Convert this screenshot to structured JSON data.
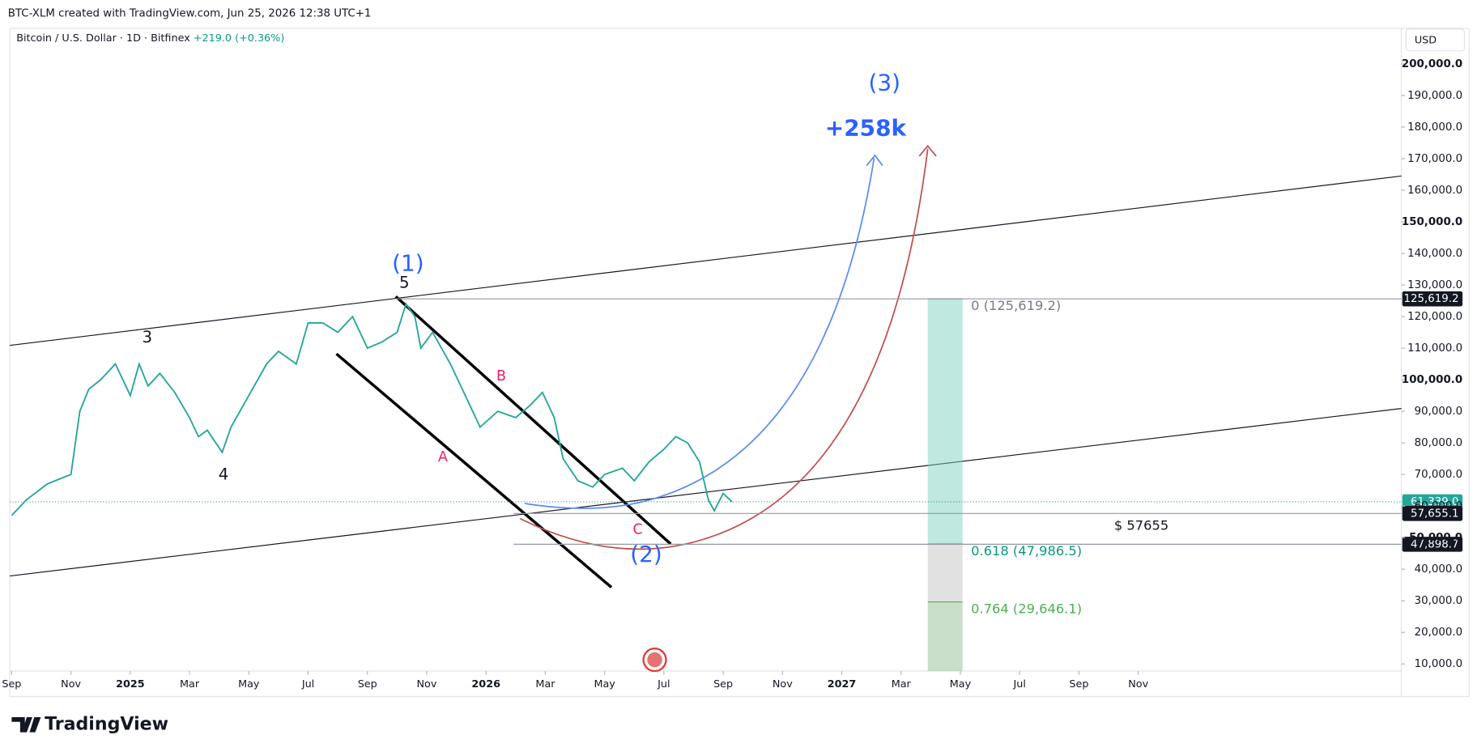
{
  "header": {
    "credit": "BTC-XLM created with TradingView.com, Jun 25, 2026 12:38 UTC+1",
    "symbol": "Bitcoin / U.S. Dollar · 1D · Bitfinex",
    "change": "+219.0 (+0.36%)",
    "currency": "USD",
    "brand": "TradingView"
  },
  "chart_data": {
    "type": "line",
    "color": "#26a69a",
    "x": [
      0,
      0.5,
      1.2,
      2,
      2.3,
      2.6,
      3,
      3.5,
      4,
      4.3,
      4.6,
      5,
      5.5,
      6,
      6.3,
      6.6,
      7.1,
      7.4,
      8,
      8.6,
      9,
      9.6,
      10,
      10.5,
      11,
      11.5,
      12,
      12.5,
      13,
      13.3,
      13.6,
      13.8,
      14.2,
      14.8,
      15.3,
      15.8,
      16.4,
      17,
      17.5,
      17.9,
      18.3,
      18.6,
      19.1,
      19.6,
      20,
      20.6,
      21,
      21.5,
      22,
      22.4,
      22.8,
      23.2,
      23.5,
      23.7,
      24,
      24.3
    ],
    "values": [
      57000,
      62000,
      67000,
      70000,
      90000,
      97000,
      100000,
      105000,
      95000,
      105000,
      98000,
      102000,
      96000,
      88000,
      82000,
      84000,
      77000,
      85000,
      95000,
      105000,
      109000,
      105000,
      118000,
      118000,
      115000,
      120000,
      110000,
      112000,
      115000,
      124000,
      120000,
      110000,
      115000,
      105000,
      95000,
      85000,
      90000,
      88000,
      92000,
      96000,
      88000,
      75000,
      68000,
      66000,
      70000,
      72000,
      68000,
      74000,
      78000,
      82000,
      80000,
      74000,
      62000,
      58500,
      64000,
      61339
    ],
    "xlim": [
      0,
      47
    ],
    "ylim": [
      7750,
      211300
    ],
    "xticks": [
      {
        "value": 0,
        "label": "Sep"
      },
      {
        "value": 2,
        "label": "Nov"
      },
      {
        "value": 4,
        "label": "2025"
      },
      {
        "value": 6,
        "label": "Mar"
      },
      {
        "value": 8,
        "label": "May"
      },
      {
        "value": 10,
        "label": "Jul"
      },
      {
        "value": 12,
        "label": "Sep"
      },
      {
        "value": 14,
        "label": "Nov"
      },
      {
        "value": 16,
        "label": "2026"
      },
      {
        "value": 18,
        "label": "Mar"
      },
      {
        "value": 20,
        "label": "May"
      },
      {
        "value": 22,
        "label": "Jul"
      },
      {
        "value": 24,
        "label": "Sep"
      },
      {
        "value": 26,
        "label": "Nov"
      },
      {
        "value": 28,
        "label": "2027"
      },
      {
        "value": 30,
        "label": "Mar"
      },
      {
        "value": 32,
        "label": "May"
      },
      {
        "value": 34,
        "label": "Jul"
      },
      {
        "value": 36,
        "label": "Sep"
      },
      {
        "value": 38,
        "label": "Nov"
      }
    ],
    "yticks": [
      {
        "value": 10000,
        "label": "10,000.0"
      },
      {
        "value": 20000,
        "label": "20,000.0"
      },
      {
        "value": 30000,
        "label": "30,000.0"
      },
      {
        "value": 40000,
        "label": "40,000.0"
      },
      {
        "value": 50000,
        "label": "50,000.0"
      },
      {
        "value": 60000,
        "label": "60,000.0"
      },
      {
        "value": 70000,
        "label": "70,000.0"
      },
      {
        "value": 80000,
        "label": "80,000.0"
      },
      {
        "value": 90000,
        "label": "90,000.0"
      },
      {
        "value": 100000,
        "label": "100,000.0"
      },
      {
        "value": 110000,
        "label": "110,000.0"
      },
      {
        "value": 120000,
        "label": "120,000.0"
      },
      {
        "value": 130000,
        "label": "130,000.0"
      },
      {
        "value": 140000,
        "label": "140,000.0"
      },
      {
        "value": 150000,
        "label": "150,000.0"
      },
      {
        "value": 160000,
        "label": "160,000.0"
      },
      {
        "value": 170000,
        "label": "170,000.0"
      },
      {
        "value": 180000,
        "label": "180,000.0"
      },
      {
        "value": 190000,
        "label": "190,000.0"
      },
      {
        "value": 200000,
        "label": "200,000.0"
      }
    ],
    "price_tags": [
      {
        "value": 125619.2,
        "label": "125,619.2",
        "color": "#131722"
      },
      {
        "value": 61339.0,
        "label": "61,339.0",
        "color": "#26a69a"
      },
      {
        "value": 57655.1,
        "label": "57,655.1",
        "color": "#131722"
      },
      {
        "value": 47898.7,
        "label": "47,898.7",
        "color": "#131722"
      }
    ],
    "fib_levels": [
      {
        "value": 125619.2,
        "label": "0 (125,619.2)",
        "color": "#787b86"
      },
      {
        "value": 47986.5,
        "label": "0.618 (47,986.5)",
        "color": "#089981"
      },
      {
        "value": 29646.1,
        "label": "0.764 (29,646.1)",
        "color": "#4caf50"
      }
    ],
    "annotations": {
      "w1": "(1)",
      "w2": "(2)",
      "w3": "(3)",
      "target": "+258k",
      "five": "5",
      "three": "3",
      "four": "4",
      "a": "A",
      "b": "B",
      "c": "C",
      "level": "$ 57655"
    }
  }
}
